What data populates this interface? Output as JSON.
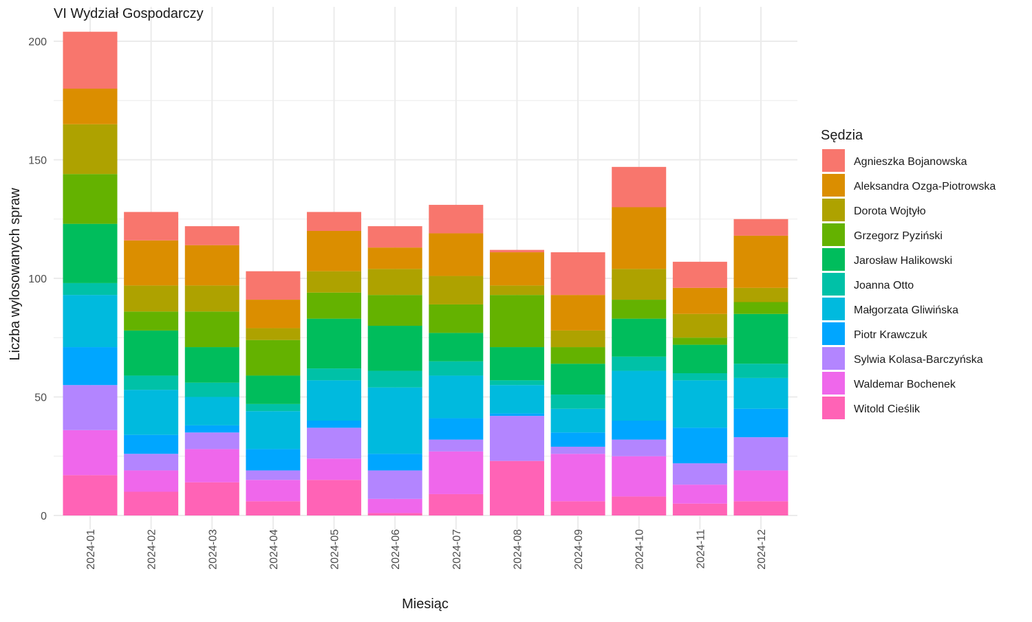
{
  "chart_data": {
    "type": "bar",
    "stacked": true,
    "title": "VI Wydział Gospodarczy",
    "xlabel": "Miesiąc",
    "ylabel": "Liczba wylosowanych spraw",
    "ylim": [
      0,
      210
    ],
    "yticks": [
      0,
      50,
      100,
      150,
      200
    ],
    "grid": true,
    "legend_position": "right",
    "legend_title": "Sędzia",
    "categories": [
      "2024-01",
      "2024-02",
      "2024-03",
      "2024-04",
      "2024-05",
      "2024-06",
      "2024-07",
      "2024-08",
      "2024-09",
      "2024-10",
      "2024-11",
      "2024-12"
    ],
    "series": [
      {
        "name": "Agnieszka Bojanowska",
        "color": "#F8766D",
        "values": [
          24,
          12,
          8,
          12,
          8,
          9,
          12,
          1,
          18,
          17,
          11,
          7
        ]
      },
      {
        "name": "Aleksandra Ozga-Piotrowska",
        "color": "#DB8E00",
        "values": [
          15,
          19,
          17,
          12,
          17,
          9,
          18,
          14,
          15,
          26,
          11,
          22
        ]
      },
      {
        "name": "Dorota Wojtyło",
        "color": "#AEA200",
        "values": [
          21,
          11,
          11,
          5,
          9,
          11,
          12,
          4,
          7,
          13,
          10,
          6
        ]
      },
      {
        "name": "Grzegorz Pyziński",
        "color": "#64B200",
        "values": [
          21,
          8,
          15,
          15,
          11,
          13,
          12,
          22,
          7,
          8,
          3,
          5
        ]
      },
      {
        "name": "Jarosław Halikowski",
        "color": "#00BD5C",
        "values": [
          25,
          19,
          15,
          12,
          21,
          19,
          12,
          14,
          13,
          16,
          12,
          21
        ]
      },
      {
        "name": "Joanna Otto",
        "color": "#00C1A7",
        "values": [
          5,
          6,
          6,
          3,
          5,
          7,
          6,
          2,
          6,
          6,
          3,
          6
        ]
      },
      {
        "name": "Małgorzata Gliwińska",
        "color": "#00BADE",
        "values": [
          22,
          19,
          12,
          16,
          17,
          28,
          18,
          12,
          10,
          21,
          20,
          13
        ]
      },
      {
        "name": "Piotr Krawczuk",
        "color": "#00A6FF",
        "values": [
          16,
          8,
          3,
          9,
          3,
          7,
          9,
          1,
          6,
          8,
          15,
          12
        ]
      },
      {
        "name": "Sylwia Kolasa-Barczyńska",
        "color": "#B385FF",
        "values": [
          19,
          7,
          7,
          4,
          13,
          12,
          5,
          19,
          3,
          7,
          9,
          14
        ]
      },
      {
        "name": "Waldemar Bochenek",
        "color": "#EF67EB",
        "values": [
          19,
          9,
          14,
          9,
          9,
          6,
          18,
          0,
          20,
          17,
          8,
          13
        ]
      },
      {
        "name": "Witold Cieślik",
        "color": "#FF63B6",
        "values": [
          17,
          10,
          14,
          6,
          15,
          1,
          9,
          23,
          6,
          8,
          5,
          6
        ]
      }
    ]
  }
}
